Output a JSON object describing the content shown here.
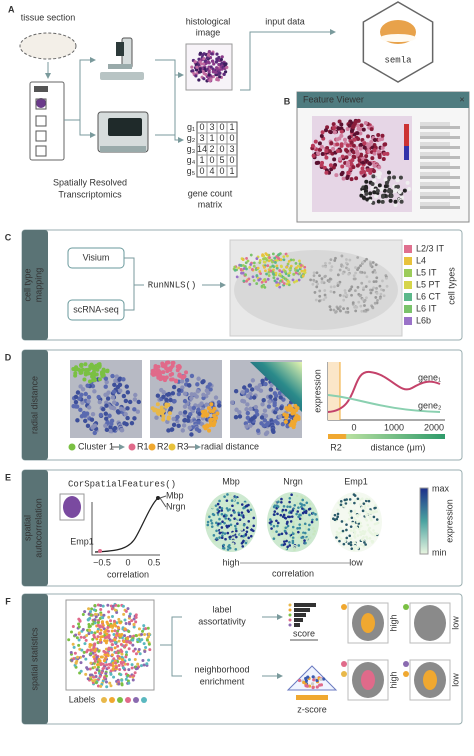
{
  "a": {
    "label": "A",
    "tissue_section": "tissue section",
    "histological_image": [
      "histological",
      "image"
    ],
    "input_data": "input data",
    "logo": "semla",
    "srt": [
      "Spatially Resolved",
      "Transcriptomics"
    ],
    "gene_count_matrix": [
      "gene count",
      "matrix"
    ],
    "matrix_rows": [
      "g₁",
      "g₂",
      "g₃",
      "g₄",
      "g₅"
    ],
    "matrix_values": [
      [
        "0",
        "3",
        "0",
        "1"
      ],
      [
        "3",
        "1",
        "0",
        "0"
      ],
      [
        "14",
        "2",
        "0",
        "3"
      ],
      [
        "1",
        "0",
        "5",
        "0"
      ],
      [
        "0",
        "4",
        "0",
        "1"
      ]
    ]
  },
  "b": {
    "label": "B",
    "window_title": "Feature Viewer",
    "close": "×"
  },
  "c": {
    "label": "C",
    "side": [
      "cell type",
      "mapping"
    ],
    "visium": "Visium",
    "scrna": "scRNA-seq",
    "function": "RunNNLS()",
    "legend_title": "cell types",
    "legend": [
      {
        "name": "L2/3 IT",
        "color": "#e0708f"
      },
      {
        "name": "L4",
        "color": "#e8c23c"
      },
      {
        "name": "L5 IT",
        "color": "#9ccc5a"
      },
      {
        "name": "L5 PT",
        "color": "#d6d54a"
      },
      {
        "name": "L6 CT",
        "color": "#5cb88a"
      },
      {
        "name": "L6 IT",
        "color": "#7ac36a"
      },
      {
        "name": "L6b",
        "color": "#9a72c8"
      }
    ]
  },
  "d": {
    "label": "D",
    "side": "radial distance",
    "cluster": "Cluster 1",
    "regions": [
      "R1",
      "R2",
      "R3"
    ],
    "result": "radial distance",
    "y_label": "expression",
    "gene1": "gene₁",
    "gene2": "gene₂",
    "ticks": [
      "0",
      "1000",
      "2000"
    ],
    "region_label": "R2",
    "x_label": "distance (μm)"
  },
  "e": {
    "label": "E",
    "side": [
      "spatial",
      "autocorrelation"
    ],
    "function": "CorSpatialFeatures()",
    "curve_genes": [
      "Mbp",
      "Nrgn"
    ],
    "low_gene": "Emp1",
    "ticks": [
      "−0.5",
      "0",
      "0.5"
    ],
    "x_label": "correlation",
    "maps": [
      "Mbp",
      "Nrgn",
      "Emp1"
    ],
    "high": "high",
    "mid": "correlation",
    "low": "low",
    "bar_max": "max",
    "bar_min": "min",
    "bar_label": "expression"
  },
  "f": {
    "label": "F",
    "side": "spatial statistics",
    "labels": "Labels",
    "assortativity": [
      "label",
      "assortativity"
    ],
    "enrichment": [
      "neighborhood",
      "enrichment"
    ],
    "score": "score",
    "zscore": "z-score",
    "high1": "high",
    "low1": "low",
    "high2": "high",
    "low2": "low"
  }
}
